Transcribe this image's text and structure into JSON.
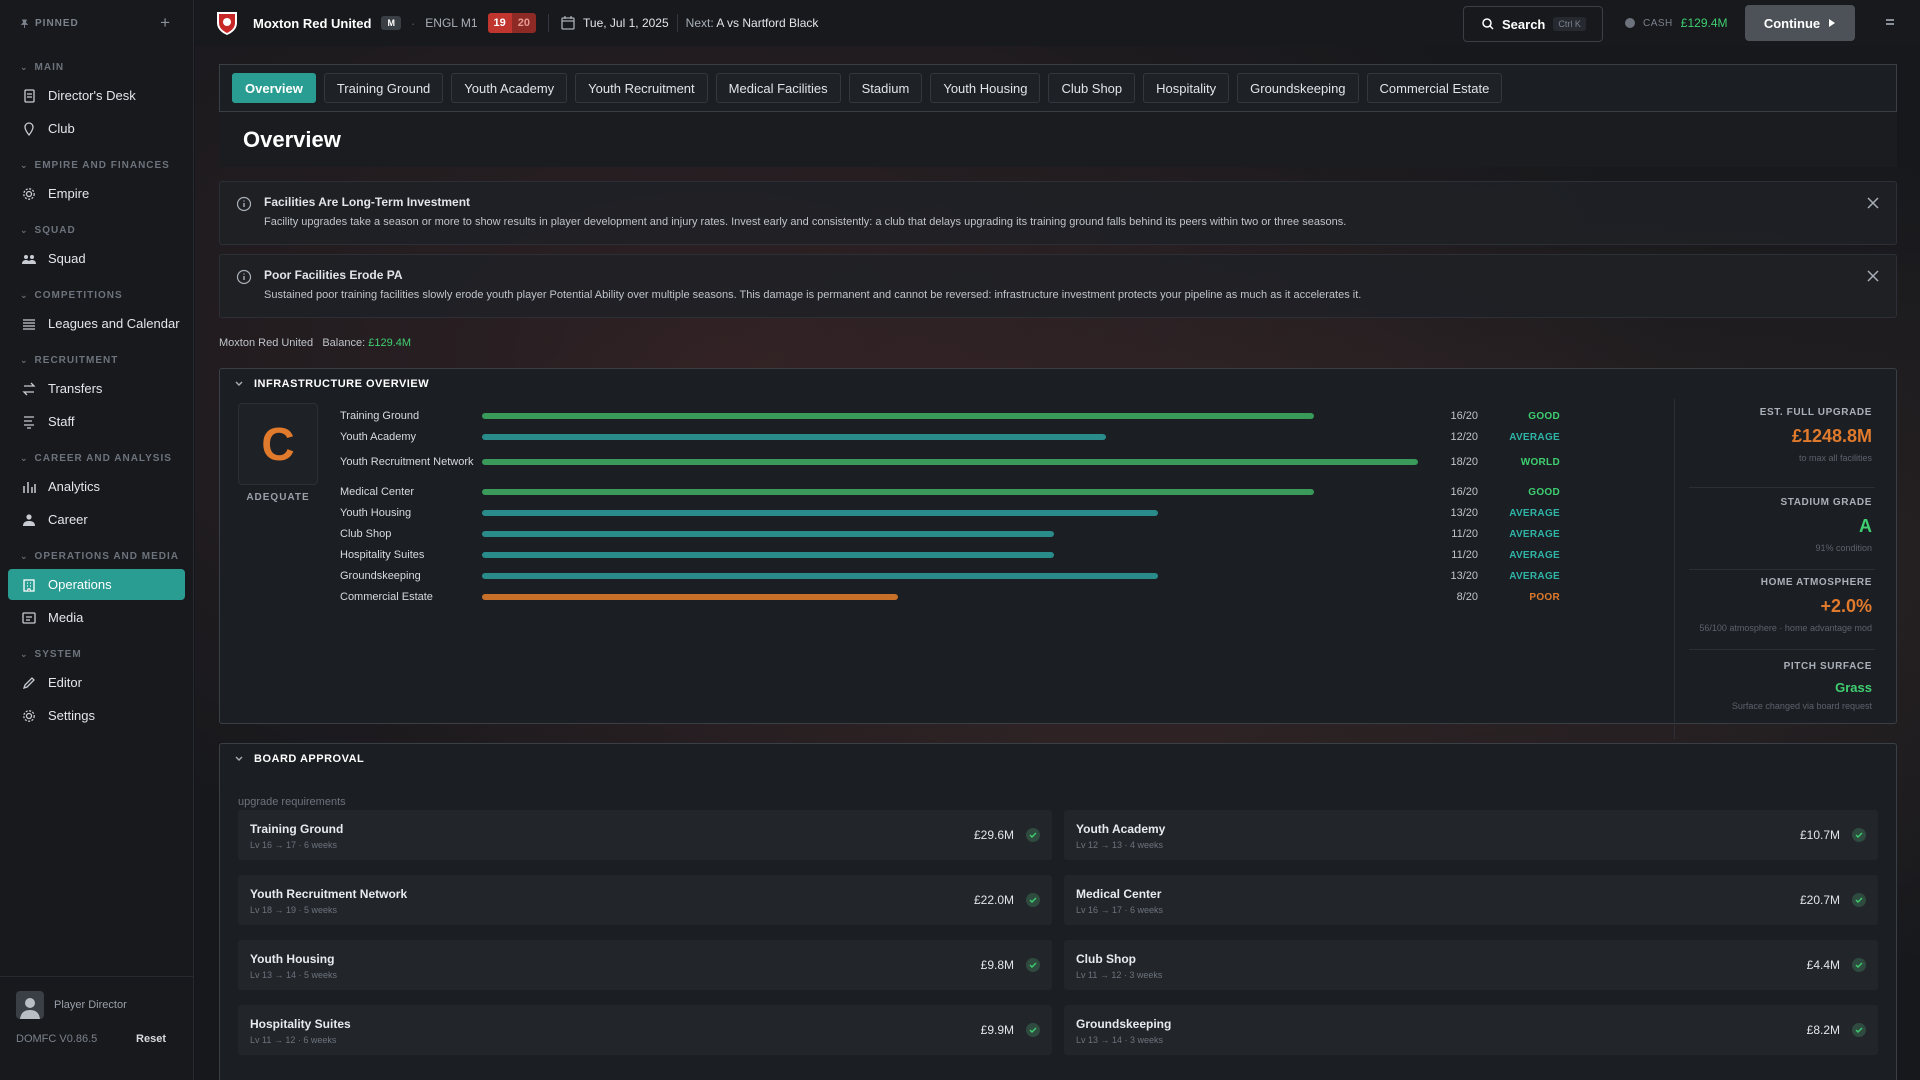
{
  "sidebar": {
    "pinned_label": "PINNED",
    "sections": [
      {
        "title": "MAIN",
        "items": [
          {
            "label": "Director's Desk",
            "icon": "document-icon"
          },
          {
            "label": "Club",
            "icon": "pin-icon"
          }
        ]
      },
      {
        "title": "EMPIRE AND FINANCES",
        "items": [
          {
            "label": "Empire",
            "icon": "gear-icon"
          }
        ]
      },
      {
        "title": "SQUAD",
        "items": [
          {
            "label": "Squad",
            "icon": "people-icon"
          }
        ]
      },
      {
        "title": "COMPETITIONS",
        "items": [
          {
            "label": "Leagues and Calendar",
            "icon": "list-icon"
          }
        ]
      },
      {
        "title": "RECRUITMENT",
        "items": [
          {
            "label": "Transfers",
            "icon": "swap-icon"
          },
          {
            "label": "Staff",
            "icon": "staff-icon"
          }
        ]
      },
      {
        "title": "CAREER AND ANALYSIS",
        "items": [
          {
            "label": "Analytics",
            "icon": "bar-chart-icon"
          },
          {
            "label": "Career",
            "icon": "person-icon"
          }
        ]
      },
      {
        "title": "OPERATIONS AND MEDIA",
        "items": [
          {
            "label": "Operations",
            "icon": "building-icon",
            "active": true
          },
          {
            "label": "Media",
            "icon": "media-icon"
          }
        ]
      },
      {
        "title": "SYSTEM",
        "items": [
          {
            "label": "Editor",
            "icon": "pencil-icon"
          },
          {
            "label": "Settings",
            "icon": "gear-icon"
          }
        ]
      }
    ],
    "footer": {
      "user": "Player Director",
      "version": "DOMFC V0.86.5",
      "reset": "Reset"
    }
  },
  "topbar": {
    "club_name": "Moxton Red United",
    "club_badge": "M",
    "league": "ENGL M1",
    "rank_pos": "19",
    "rank_total": "20",
    "date": "Tue, Jul 1, 2025",
    "next_label": "Next:",
    "next_value": "A  vs Nartford Black",
    "search_label": "Search",
    "search_kbd": "Ctrl K",
    "cash_label": "CASH",
    "cash_value": "£129.4M",
    "continue_label": "Continue"
  },
  "tabs": [
    "Overview",
    "Training Ground",
    "Youth Academy",
    "Youth Recruitment",
    "Medical Facilities",
    "Stadium",
    "Youth Housing",
    "Club Shop",
    "Hospitality",
    "Groundskeeping",
    "Commercial Estate"
  ],
  "page_title": "Overview",
  "notices": [
    {
      "title": "Facilities Are Long-Term Investment",
      "body": "Facility upgrades take a season or more to show results in player development and injury rates. Invest early and consistently: a club that delays upgrading its training ground falls behind its peers within two or three seasons."
    },
    {
      "title": "Poor Facilities Erode PA",
      "body": "Sustained poor training facilities slowly erode youth player Potential Ability over multiple seasons. This damage is permanent and cannot be reversed: infrastructure investment protects your pipeline as much as it accelerates it."
    }
  ],
  "balance": {
    "club": "Moxton Red United",
    "label": "Balance:",
    "value": "£129.4M"
  },
  "infrastructure": {
    "title": "INFRASTRUCTURE OVERVIEW",
    "grade": "C",
    "grade_label": "ADEQUATE",
    "facilities": [
      {
        "name": "Training Ground",
        "level": 16,
        "max": 20,
        "score": "16/20",
        "status": "GOOD",
        "color": "#3a9a5a"
      },
      {
        "name": "Youth Academy",
        "level": 12,
        "max": 20,
        "score": "12/20",
        "status": "AVERAGE",
        "color": "#2a8c8a"
      },
      {
        "name": "Youth Recruitment Network",
        "level": 18,
        "max": 20,
        "score": "18/20",
        "status": "WORLD",
        "color": "#3a9a5a"
      },
      {
        "name": "Medical Center",
        "level": 16,
        "max": 20,
        "score": "16/20",
        "status": "GOOD",
        "color": "#3a9a5a"
      },
      {
        "name": "Youth Housing",
        "level": 13,
        "max": 20,
        "score": "13/20",
        "status": "AVERAGE",
        "color": "#2a8c8a"
      },
      {
        "name": "Club Shop",
        "level": 11,
        "max": 20,
        "score": "11/20",
        "status": "AVERAGE",
        "color": "#2a8c8a"
      },
      {
        "name": "Hospitality Suites",
        "level": 11,
        "max": 20,
        "score": "11/20",
        "status": "AVERAGE",
        "color": "#2a8c8a"
      },
      {
        "name": "Groundskeeping",
        "level": 13,
        "max": 20,
        "score": "13/20",
        "status": "AVERAGE",
        "color": "#2a8c8a"
      },
      {
        "name": "Commercial Estate",
        "level": 8,
        "max": 20,
        "score": "8/20",
        "status": "POOR",
        "color": "#c8702a"
      }
    ],
    "status_colors": {
      "GOOD": "#3fcf70",
      "AVERAGE": "#2fb5a8",
      "WORLD": "#3fcf70",
      "POOR": "#e07a2c"
    },
    "stats": {
      "upgrade_label": "EST. FULL UPGRADE",
      "upgrade_value": "£1248.8M",
      "upgrade_sub": "to max all facilities",
      "stadium_label": "STADIUM GRADE",
      "stadium_value": "A",
      "stadium_sub": "91% condition",
      "atmosphere_label": "HOME ATMOSPHERE",
      "atmosphere_value": "+2.0%",
      "atmosphere_sub": "56/100 atmosphere · home advantage mod",
      "pitch_label": "PITCH SURFACE",
      "pitch_value": "Grass",
      "pitch_sub": "Surface changed via board request"
    }
  },
  "board": {
    "title": "BOARD APPROVAL",
    "subtitle": "upgrade requirements",
    "items": [
      {
        "name": "Training Ground",
        "meta": "Lv 16 → 17  ·  6 weeks",
        "cost": "£29.6M"
      },
      {
        "name": "Youth Academy",
        "meta": "Lv 12 → 13  ·  4 weeks",
        "cost": "£10.7M"
      },
      {
        "name": "Youth Recruitment Network",
        "meta": "Lv 18 → 19  ·  5 weeks",
        "cost": "£22.0M"
      },
      {
        "name": "Medical Center",
        "meta": "Lv 16 → 17  ·  6 weeks",
        "cost": "£20.7M"
      },
      {
        "name": "Youth Housing",
        "meta": "Lv 13 → 14  ·  5 weeks",
        "cost": "£9.8M"
      },
      {
        "name": "Club Shop",
        "meta": "Lv 11 → 12  ·  3 weeks",
        "cost": "£4.4M"
      },
      {
        "name": "Hospitality Suites",
        "meta": "Lv 11 → 12  ·  6 weeks",
        "cost": "£9.9M"
      },
      {
        "name": "Groundskeeping",
        "meta": "Lv 13 → 14  ·  3 weeks",
        "cost": "£8.2M"
      }
    ]
  }
}
